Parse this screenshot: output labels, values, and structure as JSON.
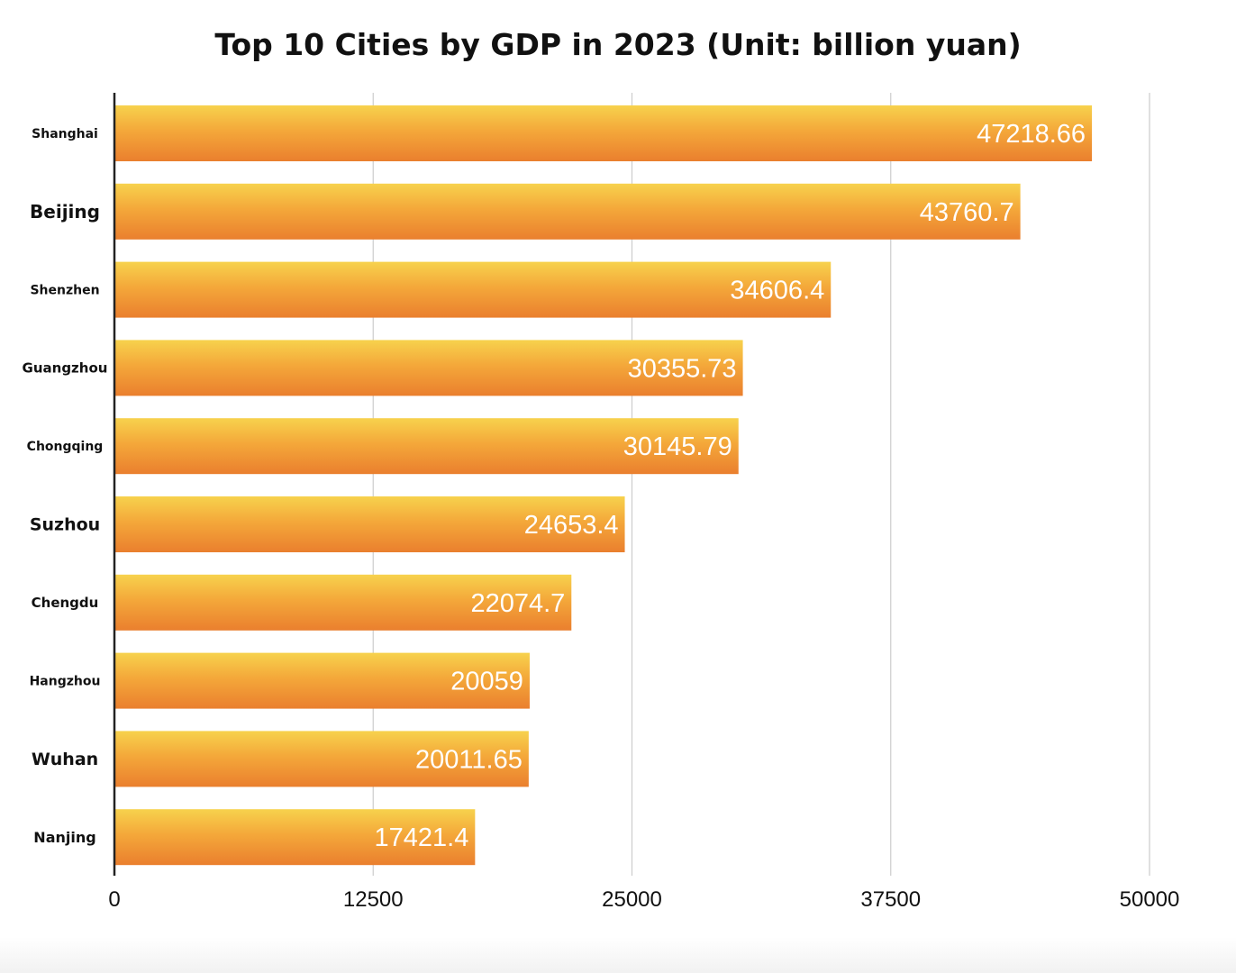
{
  "chart_data": {
    "type": "bar",
    "orientation": "horizontal",
    "title": "Top 10 Cities by GDP in 2023 (Unit: billion yuan)",
    "xlabel": "",
    "ylabel": "",
    "categories": [
      "Shanghai",
      "Beijing",
      "Shenzhen",
      "Guangzhou",
      "Chongqing",
      "Suzhou",
      "Chengdu",
      "Hangzhou",
      "Wuhan",
      "Nanjing"
    ],
    "values": [
      47218.66,
      43760.7,
      34606.4,
      30355.73,
      30145.79,
      24653.4,
      22074.7,
      20059,
      20011.65,
      17421.4
    ],
    "value_labels": [
      "47218.66",
      "43760.7",
      "34606.4",
      "30355.73",
      "30145.79",
      "24653.4",
      "22074.7",
      "20059",
      "20011.65",
      "17421.4"
    ],
    "xlim": [
      0,
      50000
    ],
    "xticks": [
      0,
      12500,
      25000,
      37500,
      50000
    ],
    "grid": "vertical",
    "legend": "none",
    "colors": {
      "bar_top": "#f7d24d",
      "bar_mid": "#f4a83a",
      "bar_bottom": "#ea7f2e",
      "grid": "#cccccc",
      "axis": "#222222",
      "value_label": "#ffffff"
    }
  }
}
